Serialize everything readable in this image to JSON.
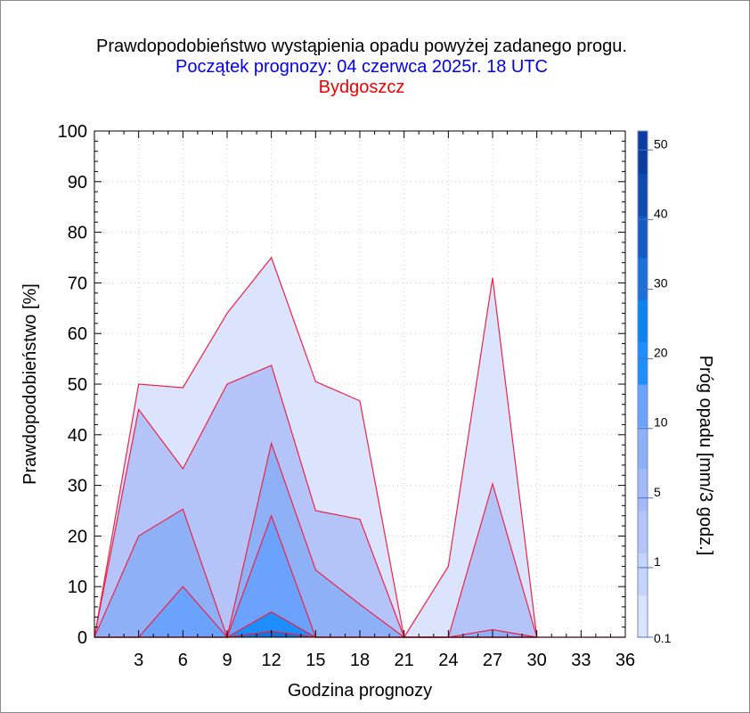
{
  "title": "Prawdopodobieństwo wystąpienia opadu powyżej zadanego progu.",
  "subtitle": "Początek prognozy: 04 czerwca 2025r. 18 UTC",
  "station": "Bydgoszcz",
  "chart_data": {
    "type": "area",
    "title": "Prawdopodobieństwo wystąpienia opadu powyżej zadanego progu.",
    "xlabel": "Godzina prognozy",
    "ylabel": "Prawdopodobieństwo [%]",
    "xlim": [
      0,
      36
    ],
    "ylim": [
      0,
      100
    ],
    "x_ticks": [
      3,
      6,
      9,
      12,
      15,
      18,
      21,
      24,
      27,
      30,
      33,
      36
    ],
    "y_ticks": [
      0,
      10,
      20,
      30,
      40,
      50,
      60,
      70,
      80,
      90,
      100
    ],
    "grid": true,
    "x": [
      0,
      3,
      6,
      9,
      12,
      15,
      18,
      21,
      24,
      27,
      30
    ],
    "series": [
      {
        "name": "0.1",
        "color": "#dbe3fd",
        "values": [
          0,
          50,
          49.3,
          64,
          75,
          50.5,
          46.7,
          0,
          14,
          71,
          0
        ]
      },
      {
        "name": "1",
        "color": "#b4c4f9",
        "values": [
          0,
          45,
          33.3,
          50,
          53.7,
          25,
          23.3,
          0,
          0,
          30.3,
          0
        ]
      },
      {
        "name": "5",
        "color": "#8eb0f7",
        "values": [
          0,
          20,
          25.3,
          0,
          38.3,
          13.3,
          6.5,
          0,
          0,
          1.5,
          0
        ]
      },
      {
        "name": "10",
        "color": "#6aa2fd",
        "values": [
          0,
          0,
          10,
          0,
          24,
          0,
          0,
          0,
          0,
          0,
          0
        ]
      },
      {
        "name": "20",
        "color": "#1e8efe",
        "values": [
          0,
          0,
          0,
          0,
          5,
          0,
          0,
          0,
          0,
          0,
          0
        ]
      },
      {
        "name": "30",
        "color": "#1a6fd8",
        "values": [
          0,
          0,
          0,
          0,
          1.2,
          0,
          0,
          0,
          0,
          0,
          0
        ]
      }
    ],
    "colorbar": {
      "label": "Próg opadu [mm/3 godz.]",
      "tick_labels": [
        "0.1",
        "1",
        "5",
        "10",
        "20",
        "30",
        "40",
        "50"
      ],
      "colors": [
        "#dbe3fd",
        "#c6d3fb",
        "#b4c4f9",
        "#a3b9f8",
        "#8eb0f7",
        "#6aa2fd",
        "#1e8efe",
        "#0b84f2",
        "#1a6fd8",
        "#1559c3",
        "#1049b0",
        "#0b3da0"
      ]
    },
    "line_color": "#ee2244"
  }
}
